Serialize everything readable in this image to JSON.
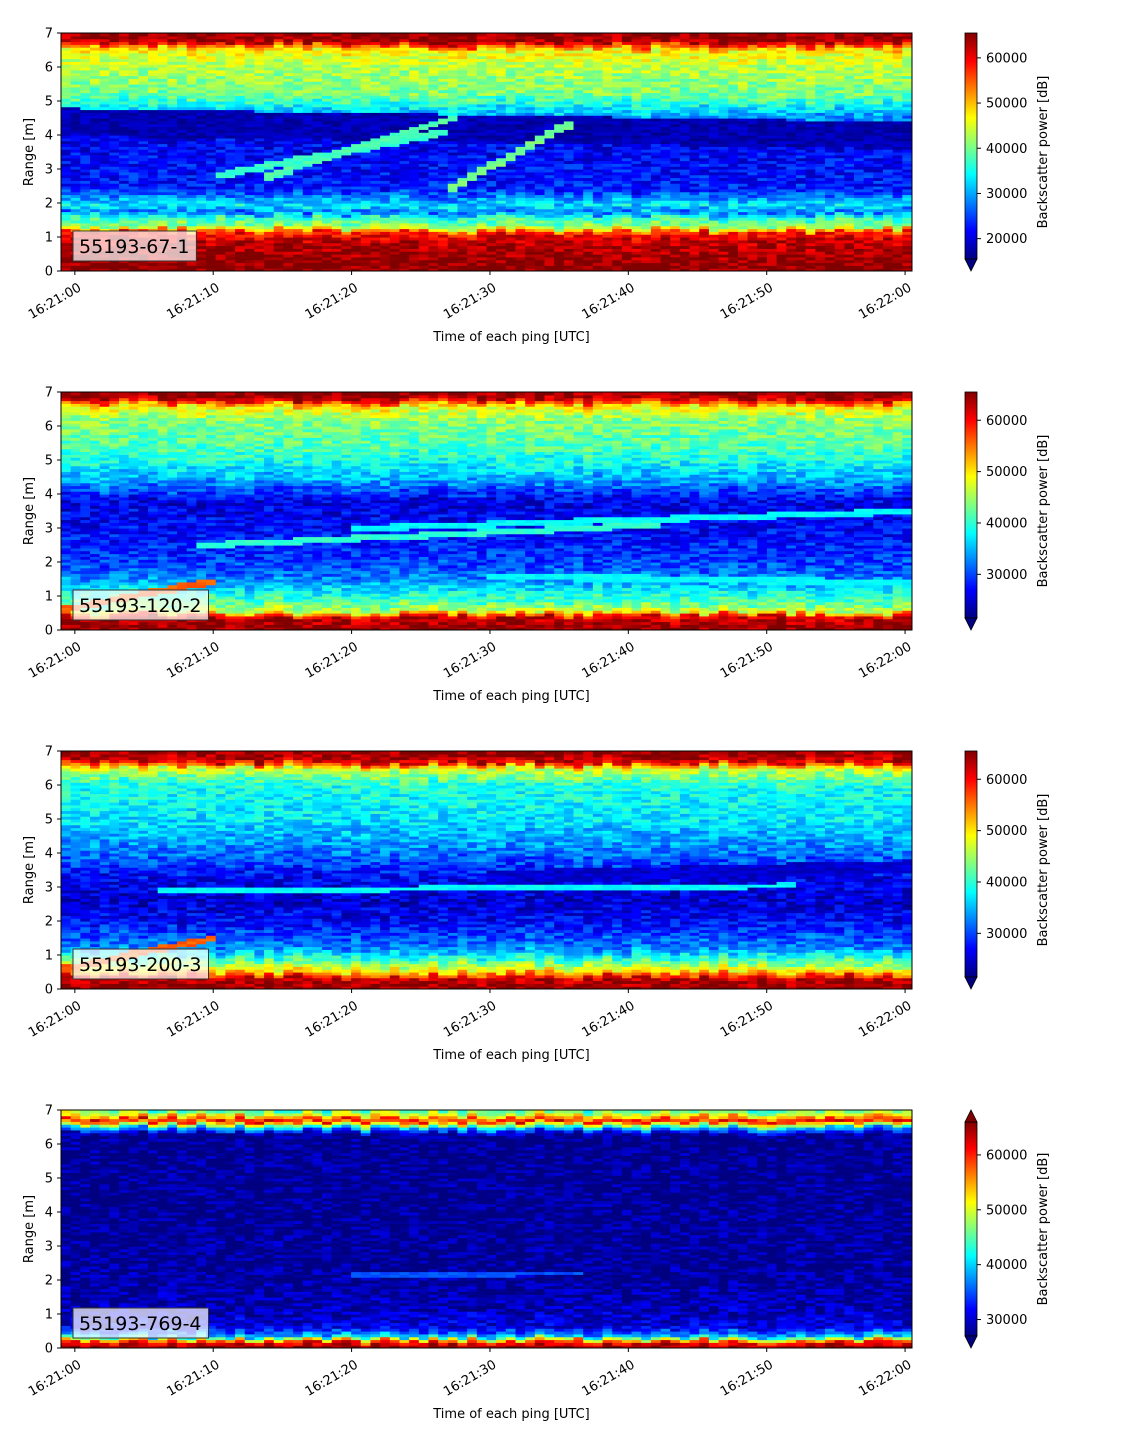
{
  "figure": {
    "xlabel": "Time of each ping [UTC]",
    "ylabel": "Range [m]",
    "colorbar_label": "Backscatter power [dB]"
  },
  "chart_data": [
    {
      "type": "heatmap",
      "panel_label": "55193-67-1",
      "xlabel": "Time of each ping [UTC]",
      "ylabel": "Range [m]",
      "x_ticks": [
        "16:21:00",
        "16:21:10",
        "16:21:20",
        "16:21:30",
        "16:21:40",
        "16:21:50",
        "16:22:00"
      ],
      "y_ticks": [
        0,
        1,
        2,
        3,
        4,
        5,
        6,
        7
      ],
      "xlim": [
        "16:20:59",
        "16:22:00.5"
      ],
      "ylim": [
        0,
        7
      ],
      "colormap": "jet",
      "colorbar": {
        "label": "Backscatter power [dB]",
        "ticks": [
          20000,
          30000,
          40000,
          50000,
          60000
        ],
        "range": [
          15500,
          65500
        ],
        "extend": "min"
      },
      "profile": [
        {
          "range": 0.0,
          "value": 65000
        },
        {
          "range": 0.25,
          "value": 65000
        },
        {
          "range": 0.9,
          "value": 62000
        },
        {
          "range": 1.15,
          "value": 58000
        },
        {
          "range": 1.3,
          "value": 42000
        },
        {
          "range": 1.6,
          "value": 36000
        },
        {
          "range": 1.75,
          "value": 26000
        },
        {
          "range": 1.9,
          "value": 34000
        },
        {
          "range": 2.1,
          "value": 30000
        },
        {
          "range": 2.4,
          "value": 23000
        },
        {
          "range": 3.0,
          "value": 22000
        },
        {
          "range": 4.0,
          "value": 21000
        },
        {
          "range": 4.6,
          "value": 30000
        },
        {
          "range": 5.2,
          "value": 40000
        },
        {
          "range": 6.0,
          "value": 43000
        },
        {
          "range": 6.5,
          "value": 47000
        },
        {
          "range": 6.75,
          "value": 63000
        },
        {
          "range": 7.0,
          "value": 65000
        }
      ],
      "features": [
        {
          "kind": "layer",
          "t0": "16:20:59",
          "t1": "16:22:00.5",
          "r0": 4.4,
          "r1": 4.0,
          "width": 0.8,
          "value": 18000
        },
        {
          "kind": "trace",
          "t0": "16:21:10",
          "t1": "16:21:27",
          "r0": 2.8,
          "r1": 4.1,
          "width": 0.22,
          "value": 37000
        },
        {
          "kind": "trace",
          "t0": "16:21:14",
          "t1": "16:21:28",
          "r0": 2.8,
          "r1": 4.6,
          "width": 0.22,
          "value": 38000
        },
        {
          "kind": "trace",
          "t0": "16:21:27",
          "t1": "16:21:36",
          "r0": 2.4,
          "r1": 4.4,
          "width": 0.25,
          "value": 40000
        }
      ]
    },
    {
      "type": "heatmap",
      "panel_label": "55193-120-2",
      "xlabel": "Time of each ping [UTC]",
      "ylabel": "Range [m]",
      "x_ticks": [
        "16:21:00",
        "16:21:10",
        "16:21:20",
        "16:21:30",
        "16:21:40",
        "16:21:50",
        "16:22:00"
      ],
      "y_ticks": [
        0,
        1,
        2,
        3,
        4,
        5,
        6,
        7
      ],
      "xlim": [
        "16:20:59",
        "16:22:00.5"
      ],
      "ylim": [
        0,
        7
      ],
      "colormap": "jet",
      "colorbar": {
        "label": "Backscatter power [dB]",
        "ticks": [
          30000,
          40000,
          50000,
          60000
        ],
        "range": [
          21500,
          65500
        ],
        "extend": "min"
      },
      "profile": [
        {
          "range": 0.0,
          "value": 65000
        },
        {
          "range": 0.4,
          "value": 62000
        },
        {
          "range": 0.55,
          "value": 47000
        },
        {
          "range": 0.8,
          "value": 42000
        },
        {
          "range": 1.2,
          "value": 37000
        },
        {
          "range": 1.6,
          "value": 32000
        },
        {
          "range": 2.2,
          "value": 29000
        },
        {
          "range": 3.0,
          "value": 27000
        },
        {
          "range": 3.8,
          "value": 26000
        },
        {
          "range": 4.5,
          "value": 35000
        },
        {
          "range": 5.3,
          "value": 41000
        },
        {
          "range": 6.2,
          "value": 44000
        },
        {
          "range": 6.6,
          "value": 50000
        },
        {
          "range": 6.8,
          "value": 63000
        },
        {
          "range": 7.0,
          "value": 65000
        }
      ],
      "features": [
        {
          "kind": "trace",
          "t0": "16:20:59",
          "t1": "16:21:10",
          "r0": 0.6,
          "r1": 1.45,
          "width": 0.2,
          "value": 56000
        },
        {
          "kind": "trace",
          "t0": "16:21:09",
          "t1": "16:21:42",
          "r0": 2.5,
          "r1": 3.1,
          "width": 0.18,
          "value": 40000
        },
        {
          "kind": "trace",
          "t0": "16:21:20",
          "t1": "16:22:00.5",
          "r0": 3.0,
          "r1": 3.5,
          "width": 0.18,
          "value": 38000
        },
        {
          "kind": "trace",
          "t0": "16:21:30",
          "t1": "16:22:00.5",
          "r0": 1.6,
          "r1": 1.4,
          "width": 0.2,
          "value": 38000
        }
      ]
    },
    {
      "type": "heatmap",
      "panel_label": "55193-200-3",
      "xlabel": "Time of each ping [UTC]",
      "ylabel": "Range [m]",
      "x_ticks": [
        "16:21:00",
        "16:21:10",
        "16:21:20",
        "16:21:30",
        "16:21:40",
        "16:21:50",
        "16:22:00"
      ],
      "y_ticks": [
        0,
        1,
        2,
        3,
        4,
        5,
        6,
        7
      ],
      "xlim": [
        "16:20:59",
        "16:22:00.5"
      ],
      "ylim": [
        0,
        7
      ],
      "colormap": "jet",
      "colorbar": {
        "label": "Backscatter power [dB]",
        "ticks": [
          30000,
          40000,
          50000,
          60000
        ],
        "range": [
          21500,
          65500
        ],
        "extend": "min"
      },
      "profile": [
        {
          "range": 0.0,
          "value": 65000
        },
        {
          "range": 0.35,
          "value": 62000
        },
        {
          "range": 0.5,
          "value": 52000
        },
        {
          "range": 0.75,
          "value": 44000
        },
        {
          "range": 1.2,
          "value": 33000
        },
        {
          "range": 2.0,
          "value": 27000
        },
        {
          "range": 2.6,
          "value": 25000
        },
        {
          "range": 3.2,
          "value": 26000
        },
        {
          "range": 4.0,
          "value": 32000
        },
        {
          "range": 5.0,
          "value": 37000
        },
        {
          "range": 6.0,
          "value": 39000
        },
        {
          "range": 6.5,
          "value": 47000
        },
        {
          "range": 6.7,
          "value": 62000
        },
        {
          "range": 7.0,
          "value": 65000
        }
      ],
      "features": [
        {
          "kind": "trace",
          "t0": "16:20:59",
          "t1": "16:21:10",
          "r0": 0.6,
          "r1": 1.5,
          "width": 0.2,
          "value": 56000
        },
        {
          "kind": "trace",
          "t0": "16:21:06",
          "t1": "16:21:52",
          "r0": 2.9,
          "r1": 3.05,
          "width": 0.16,
          "value": 38000
        },
        {
          "kind": "layer",
          "t0": "16:21:30",
          "t1": "16:22:00.5",
          "r0": 3.3,
          "r1": 3.6,
          "width": 0.4,
          "value": 25000
        }
      ]
    },
    {
      "type": "heatmap",
      "panel_label": "55193-769-4",
      "xlabel": "Time of each ping [UTC]",
      "ylabel": "Range [m]",
      "x_ticks": [
        "16:21:00",
        "16:21:10",
        "16:21:20",
        "16:21:30",
        "16:21:40",
        "16:21:50",
        "16:22:00"
      ],
      "y_ticks": [
        0,
        1,
        2,
        3,
        4,
        5,
        6,
        7
      ],
      "xlim": [
        "16:20:59",
        "16:22:00.5"
      ],
      "ylim": [
        0,
        7
      ],
      "colormap": "jet",
      "colorbar": {
        "label": "Backscatter power [dB]",
        "ticks": [
          30000,
          40000,
          50000,
          60000
        ],
        "range": [
          27000,
          66000
        ],
        "extend": "both"
      },
      "profile": [
        {
          "range": 0.0,
          "value": 66000
        },
        {
          "range": 0.2,
          "value": 60000
        },
        {
          "range": 0.35,
          "value": 40000
        },
        {
          "range": 0.6,
          "value": 31000
        },
        {
          "range": 1.2,
          "value": 29000
        },
        {
          "range": 2.0,
          "value": 28000
        },
        {
          "range": 4.0,
          "value": 27500
        },
        {
          "range": 6.3,
          "value": 27500
        },
        {
          "range": 6.5,
          "value": 40000
        },
        {
          "range": 6.7,
          "value": 62000
        },
        {
          "range": 6.85,
          "value": 52000
        },
        {
          "range": 7.0,
          "value": 44000
        }
      ],
      "features": [
        {
          "kind": "trace",
          "t0": "16:21:20",
          "t1": "16:21:37",
          "r0": 2.15,
          "r1": 2.2,
          "width": 0.12,
          "value": 35000
        }
      ]
    }
  ]
}
